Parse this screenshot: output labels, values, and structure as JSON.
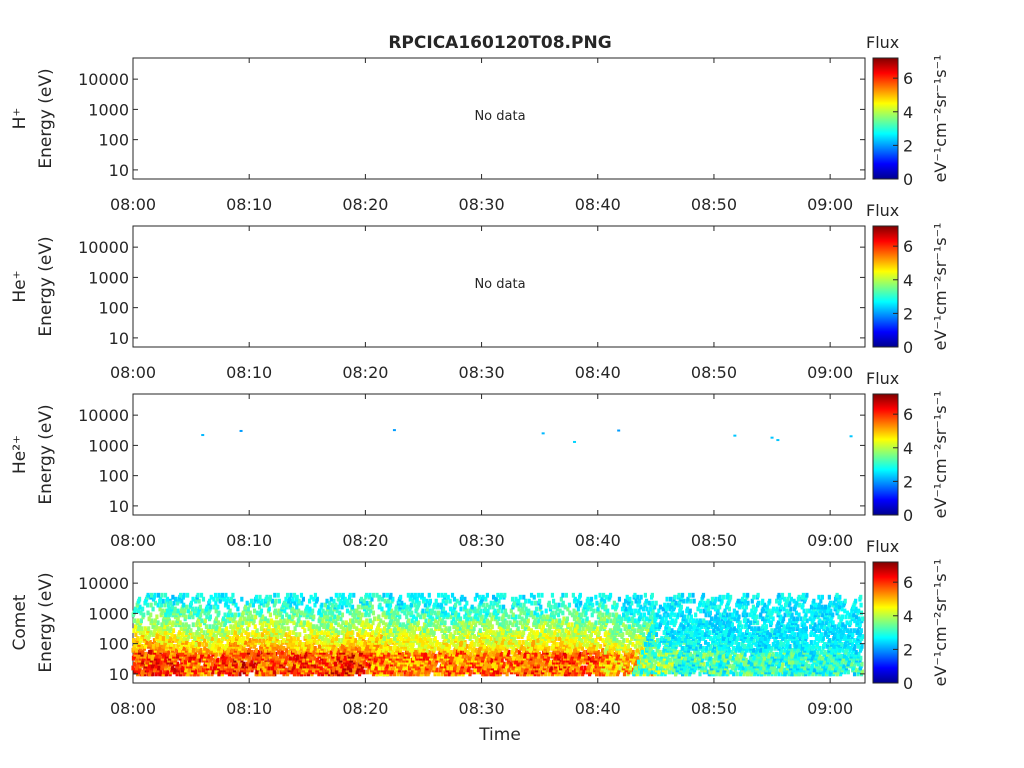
{
  "title": "RPCICA160120T08.PNG",
  "x_ticks": [
    "08:00",
    "08:10",
    "08:20",
    "08:30",
    "08:40",
    "08:50",
    "09:00"
  ],
  "x_label": "Time",
  "y_ticks": [
    "10",
    "100",
    "1000",
    "10000"
  ],
  "colorbar": {
    "title": "Flux",
    "ticks": [
      "0",
      "2",
      "4",
      "6"
    ],
    "unit_label": "eV⁻¹cm⁻²sr⁻¹s⁻¹",
    "range": [
      0,
      7.2
    ],
    "colormap": "jet"
  },
  "panels": [
    {
      "species": "H⁺",
      "axis_label": "Energy (eV)",
      "message": "No data"
    },
    {
      "species": "He⁺",
      "axis_label": "Energy (eV)",
      "message": "No data"
    },
    {
      "species": "He²⁺",
      "axis_label": "Energy (eV)",
      "message": ""
    },
    {
      "species": "Comet",
      "axis_label": "Energy (eV)",
      "message": ""
    }
  ],
  "chart_data": {
    "type": "heatmap",
    "x_axis": {
      "unit": "minutes after 08:00",
      "range": [
        0,
        63
      ]
    },
    "y_axis": {
      "scale": "log",
      "range": [
        5,
        50000
      ]
    },
    "panels": [
      {
        "species": "H⁺",
        "points": []
      },
      {
        "species": "He⁺",
        "points": []
      },
      {
        "species": "He²⁺",
        "points": [
          {
            "t": 6,
            "e": 2200,
            "f": 2.2
          },
          {
            "t": 9.3,
            "e": 3000,
            "f": 2.0
          },
          {
            "t": 22.5,
            "e": 3200,
            "f": 2.0
          },
          {
            "t": 35.3,
            "e": 2500,
            "f": 2.2
          },
          {
            "t": 38,
            "e": 1300,
            "f": 2.4
          },
          {
            "t": 41.8,
            "e": 3100,
            "f": 2.0
          },
          {
            "t": 51.8,
            "e": 2100,
            "f": 2.3
          },
          {
            "t": 55,
            "e": 1800,
            "f": 2.3
          },
          {
            "t": 55.5,
            "e": 1500,
            "f": 2.3
          },
          {
            "t": 61.8,
            "e": 2000,
            "f": 2.3
          }
        ]
      },
      {
        "species": "Comet",
        "bursts": [
          {
            "t": 0.4,
            "peak": 7.0
          },
          {
            "t": 3.2,
            "peak": 6.8
          },
          {
            "t": 6.5,
            "peak": 6.6
          },
          {
            "t": 9.8,
            "peak": 7.0
          },
          {
            "t": 13.0,
            "peak": 6.8
          },
          {
            "t": 16.3,
            "peak": 6.7
          },
          {
            "t": 19.5,
            "peak": 7.0
          },
          {
            "t": 22.8,
            "peak": 6.4
          },
          {
            "t": 26.0,
            "peak": 6.4
          },
          {
            "t": 29.3,
            "peak": 6.5
          },
          {
            "t": 32.5,
            "peak": 6.5
          },
          {
            "t": 35.8,
            "peak": 6.7
          },
          {
            "t": 39.0,
            "peak": 6.6
          },
          {
            "t": 42.3,
            "peak": 6.0
          },
          {
            "t": 45.5,
            "peak": 4.5
          },
          {
            "t": 48.8,
            "peak": 4.0
          },
          {
            "t": 52.0,
            "peak": 4.0
          },
          {
            "t": 55.3,
            "peak": 3.9
          },
          {
            "t": 58.5,
            "peak": 3.8
          },
          {
            "t": 61.8,
            "peak": 3.8
          }
        ]
      }
    ]
  }
}
